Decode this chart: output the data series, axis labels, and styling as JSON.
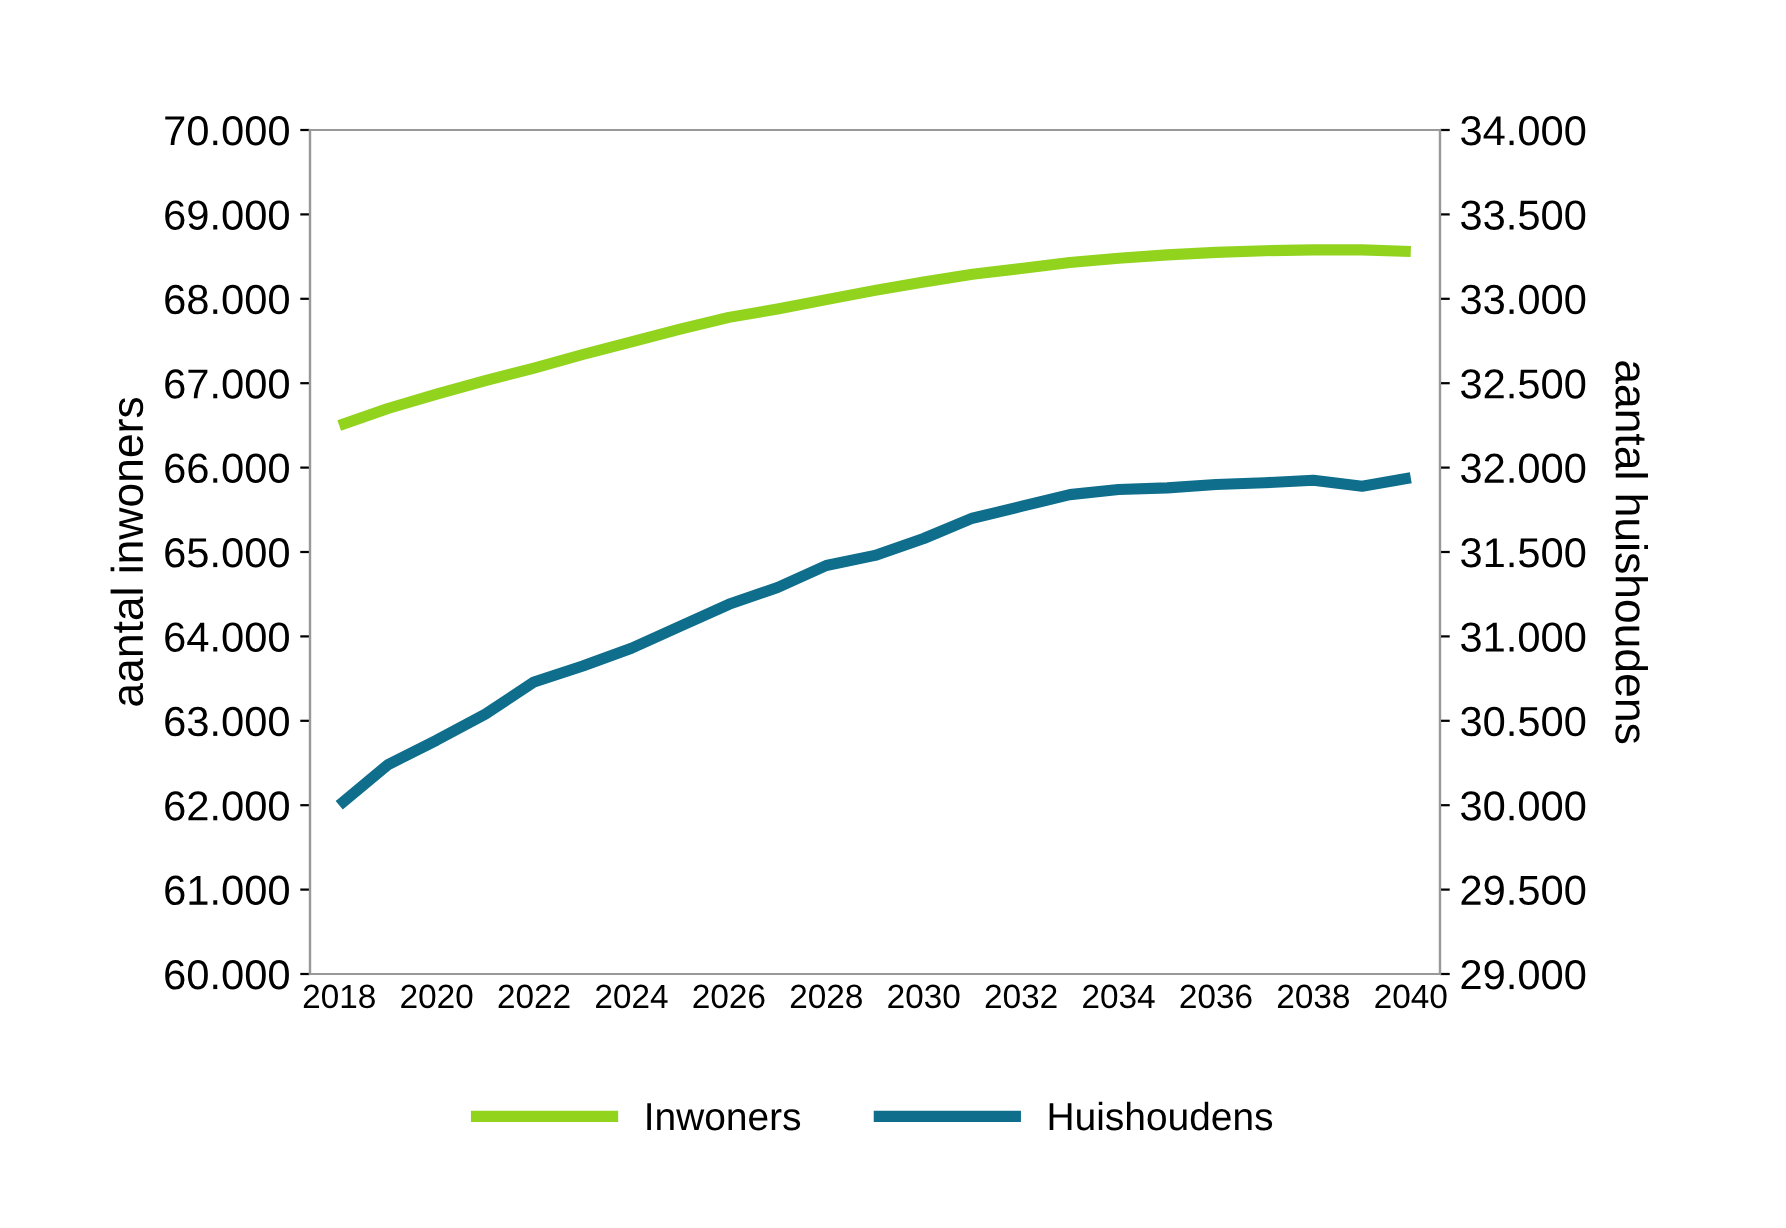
{
  "chart_data": {
    "type": "line",
    "categories": [
      "2018",
      null,
      "2020",
      null,
      "2022",
      null,
      "2024",
      null,
      "2026",
      null,
      "2028",
      null,
      "2030",
      null,
      "2032",
      null,
      "2034",
      null,
      "2036",
      null,
      "2038",
      null,
      "2040"
    ],
    "ylabel": "aantal inwoners",
    "y2label": "aantal huishoudens",
    "series": [
      {
        "name": "Inwoners",
        "color": "#92d31e",
        "values": [
          66500,
          66700,
          66870,
          67030,
          67180,
          67340,
          67490,
          67640,
          67780,
          67880,
          67990,
          68100,
          68200,
          68290,
          68360,
          68430,
          68480,
          68520,
          68550,
          68570,
          68580,
          68580,
          68560
        ]
      },
      {
        "name": "Huishoudens",
        "color": "#0e6e8c",
        "axis": "y2",
        "values": [
          30000,
          30240,
          30385,
          30540,
          30730,
          30825,
          30930,
          31060,
          31190,
          31290,
          31420,
          31480,
          31580,
          31700,
          31770,
          31840,
          31870,
          31880,
          31900,
          31910,
          31925,
          31890,
          31940
        ]
      }
    ],
    "ylim": [
      60000,
      70000
    ],
    "yticks": [
      {
        "value": 60000,
        "label": "60.000"
      },
      {
        "value": 61000,
        "label": "61.000"
      },
      {
        "value": 62000,
        "label": "62.000"
      },
      {
        "value": 63000,
        "label": "63.000"
      },
      {
        "value": 64000,
        "label": "64.000"
      },
      {
        "value": 65000,
        "label": "65.000"
      },
      {
        "value": 66000,
        "label": "66.000"
      },
      {
        "value": 67000,
        "label": "67.000"
      },
      {
        "value": 68000,
        "label": "68.000"
      },
      {
        "value": 69000,
        "label": "69.000"
      },
      {
        "value": 70000,
        "label": "70.000"
      }
    ],
    "y2lim": [
      29000,
      34000
    ],
    "y2ticks": [
      {
        "value": 29000,
        "label": "29.000"
      },
      {
        "value": 29500,
        "label": "29.500"
      },
      {
        "value": 30000,
        "label": "30.000"
      },
      {
        "value": 30500,
        "label": "30.500"
      },
      {
        "value": 31000,
        "label": "31.000"
      },
      {
        "value": 31500,
        "label": "31.500"
      },
      {
        "value": 32000,
        "label": "32.000"
      },
      {
        "value": 32500,
        "label": "32.500"
      },
      {
        "value": 33000,
        "label": "33.000"
      },
      {
        "value": 33500,
        "label": "33.500"
      },
      {
        "value": 34000,
        "label": "34.000"
      }
    ],
    "grid": false,
    "legend": "bottom",
    "marker": "none",
    "line_style": "solid"
  }
}
